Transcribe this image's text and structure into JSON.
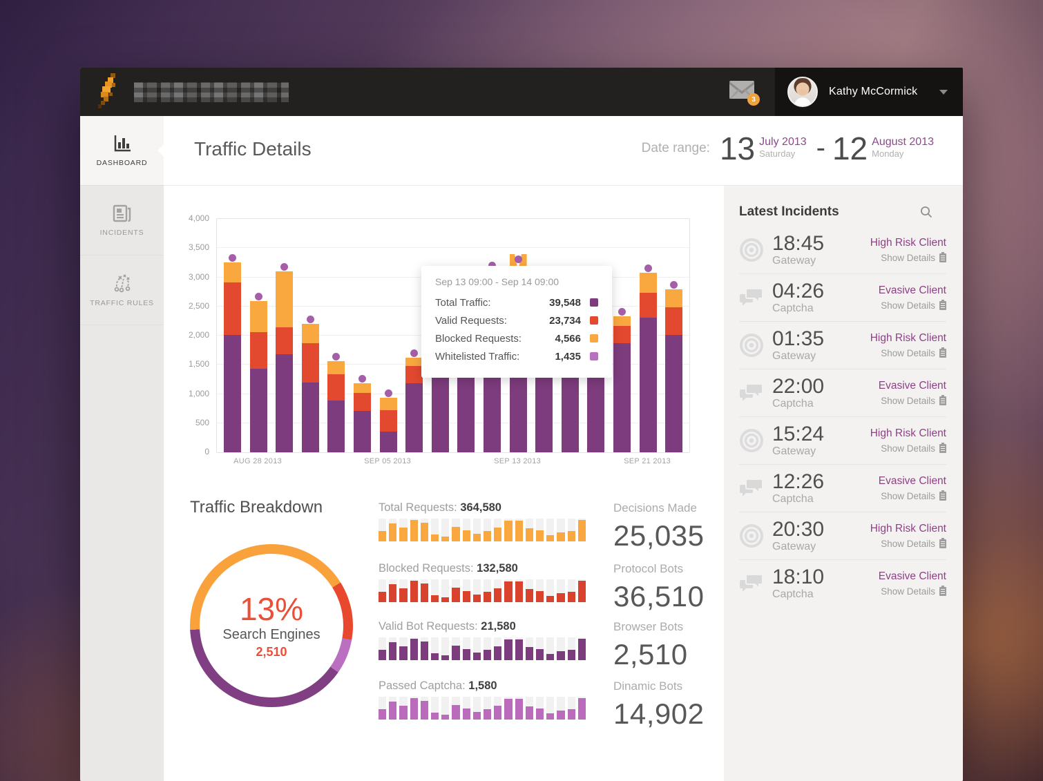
{
  "header": {
    "logo_name": "pixelated-brand-logo",
    "mail_badge": "3",
    "user_name": "Kathy McCormick"
  },
  "sidebar": {
    "items": [
      {
        "label": "DASHBOARD"
      },
      {
        "label": "INCIDENTS"
      },
      {
        "label": "TRAFFIC RULES"
      }
    ]
  },
  "page_header": {
    "title": "Traffic Details",
    "date_label": "Date range:",
    "start": {
      "day": "13",
      "month": "July 2013",
      "weekday": "Saturday"
    },
    "dash": "-",
    "end": {
      "day": "12",
      "month": "August 2013",
      "weekday": "Monday"
    }
  },
  "tooltip": {
    "title": "Sep 13 09:00 - Sep 14 09:00",
    "rows": [
      {
        "label": "Total Traffic:",
        "value": "39,548",
        "color": "#7d3c7d"
      },
      {
        "label": "Valid Requests:",
        "value": "23,734",
        "color": "#e2492f"
      },
      {
        "label": "Blocked Requests:",
        "value": "4,566",
        "color": "#f9a840"
      },
      {
        "label": "Whitelisted Traffic:",
        "value": "1,435",
        "color": "#bb6fc0"
      }
    ]
  },
  "breakdown": {
    "title": "Traffic Breakdown",
    "percent": "13%",
    "label": "Search Engines",
    "value": "2,510"
  },
  "mini_charts": [
    {
      "label": "Total Requests:",
      "value": "364,580",
      "color": "#f9a840"
    },
    {
      "label": "Blocked Requests:",
      "value": "132,580",
      "color": "#d9432d"
    },
    {
      "label": "Valid Bot Requests:",
      "value": "21,580",
      "color": "#7d3c7d"
    },
    {
      "label": "Passed Captcha:",
      "value": "1,580",
      "color": "#bb6bbb"
    }
  ],
  "stats": [
    {
      "label": "Decisions Made",
      "value": "25,035"
    },
    {
      "label": "Protocol Bots",
      "value": "36,510"
    },
    {
      "label": "Browser Bots",
      "value": "2,510"
    },
    {
      "label": "Dinamic Bots",
      "value": "14,902"
    }
  ],
  "incidents": {
    "title": "Latest Incidents",
    "items": [
      {
        "time": "18:45",
        "type": "Gateway",
        "client": "High Risk Client",
        "action": "Show Details"
      },
      {
        "time": "04:26",
        "type": "Captcha",
        "client": "Evasive Client",
        "action": "Show Details"
      },
      {
        "time": "01:35",
        "type": "Gateway",
        "client": "High Risk Client",
        "action": "Show Details"
      },
      {
        "time": "22:00",
        "type": "Captcha",
        "client": "Evasive Client",
        "action": "Show Details"
      },
      {
        "time": "15:24",
        "type": "Gateway",
        "client": "High Risk Client",
        "action": "Show Details"
      },
      {
        "time": "12:26",
        "type": "Captcha",
        "client": "Evasive Client",
        "action": "Show Details"
      },
      {
        "time": "20:30",
        "type": "Gateway",
        "client": "High Risk Client",
        "action": "Show Details"
      },
      {
        "time": "18:10",
        "type": "Captcha",
        "client": "Evasive Client",
        "action": "Show Details"
      }
    ]
  },
  "chart_data": {
    "main": {
      "type": "bar",
      "stacked": true,
      "ylim": [
        0,
        4000
      ],
      "ytick_step": 500,
      "y_labels": [
        "4,000",
        "3,500",
        "3,000",
        "2,500",
        "2,000",
        "1,500",
        "1,000",
        "500",
        "0"
      ],
      "x_axis_labels": [
        {
          "label": "AUG 28 2013",
          "bar_index": 1
        },
        {
          "label": "SEP 05 2013",
          "bar_index": 6
        },
        {
          "label": "SEP 13 2013",
          "bar_index": 11
        },
        {
          "label": "SEP 21 2013",
          "bar_index": 16
        }
      ],
      "series_colors": {
        "bottom": "#7d3c7d",
        "middle": "#e2492f",
        "top": "#f9a840",
        "dot": "#a55fa8"
      },
      "hover_index": 11,
      "bars": [
        {
          "bottom": 2015,
          "middle": 900,
          "top": 345
        },
        {
          "bottom": 1428,
          "middle": 630,
          "top": 536
        },
        {
          "bottom": 1678,
          "middle": 464,
          "top": 956
        },
        {
          "bottom": 1193,
          "middle": 675,
          "top": 333
        },
        {
          "bottom": 892,
          "middle": 441,
          "top": 227
        },
        {
          "bottom": 714,
          "middle": 309,
          "top": 159
        },
        {
          "bottom": 357,
          "middle": 360,
          "top": 213
        },
        {
          "bottom": 1178,
          "middle": 297,
          "top": 143
        },
        {
          "bottom": 1300,
          "middle": 400,
          "top": 250
        },
        {
          "bottom": 1500,
          "middle": 800,
          "top": 300
        },
        {
          "bottom": 1800,
          "middle": 900,
          "top": 430
        },
        {
          "bottom": 1900,
          "middle": 1000,
          "top": 500
        },
        {
          "bottom": 1400,
          "middle": 700,
          "top": 350
        },
        {
          "bottom": 1600,
          "middle": 600,
          "top": 300
        },
        {
          "bottom": 1450,
          "middle": 450,
          "top": 250
        },
        {
          "bottom": 1870,
          "middle": 295,
          "top": 165
        },
        {
          "bottom": 2307,
          "middle": 426,
          "top": 343
        },
        {
          "bottom": 2011,
          "middle": 473,
          "top": 308
        }
      ]
    },
    "breakdown_donut": {
      "type": "pie",
      "start_deg": -93,
      "segments": [
        {
          "name": "blocked",
          "color": "#f9a23c",
          "deg": 151
        },
        {
          "name": "valid",
          "color": "#e8492e",
          "deg": 42
        },
        {
          "name": "whitelisted",
          "color": "#bb6fc0",
          "deg": 25
        },
        {
          "name": "total",
          "color": "#803e83",
          "deg": 142
        }
      ]
    },
    "mini": {
      "type": "bar",
      "pattern": [
        0.45,
        0.78,
        0.6,
        0.95,
        0.82,
        0.3,
        0.22,
        0.65,
        0.5,
        0.32,
        0.45,
        0.62,
        0.9,
        0.92,
        0.58,
        0.5,
        0.27,
        0.4,
        0.45,
        0.95
      ]
    }
  }
}
